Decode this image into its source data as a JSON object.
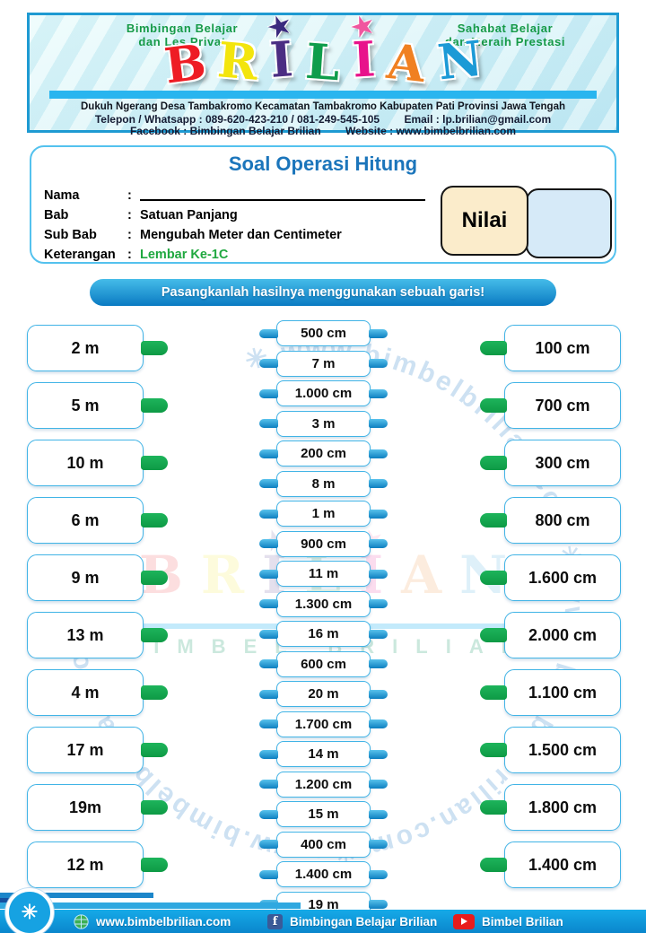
{
  "header": {
    "tagline_left": [
      "Bimbingan Belajar",
      "dan Les Privat"
    ],
    "tagline_right": [
      "Sahabat Belajar",
      "dan Meraih Prestasi"
    ],
    "logo_letters": [
      {
        "ch": "B",
        "color": "#ee1c24"
      },
      {
        "ch": "R",
        "color": "#f3e50d"
      },
      {
        "ch": "I",
        "color": "#4b2d83",
        "star": "#3b2a7e"
      },
      {
        "ch": "L",
        "color": "#0f9d4b"
      },
      {
        "ch": "I",
        "color": "#e8128b",
        "star": "#f0569f"
      },
      {
        "ch": "A",
        "color": "#f08021"
      },
      {
        "ch": "N",
        "color": "#1c9ad6"
      }
    ],
    "address": "Dukuh Ngerang Desa Tambakromo Kecamatan Tambakromo Kabupaten Pati Provinsi Jawa Tengah",
    "phone_line": "Telepon / Whatsapp : 089-620-423-210 / 081-249-545-105",
    "email_line": "Email : lp.brilian@gmail.com",
    "facebook_line": "Facebook : Bimbingan Belajar Brilian",
    "website_line": "Website : www.bimbelbrilian.com"
  },
  "info": {
    "title": "Soal Operasi Hitung",
    "colon": ":",
    "rows": [
      {
        "label": "Nama",
        "value": "",
        "type": "line"
      },
      {
        "label": "Bab",
        "value": "Satuan Panjang"
      },
      {
        "label": "Sub Bab",
        "value": "Mengubah Meter dan Centimeter"
      },
      {
        "label": "Keterangan",
        "value": "Lembar Ke-1C",
        "highlight": true
      }
    ],
    "nilai_label": "Nilai"
  },
  "instruction": {
    "text": "Pasangkanlah hasilnya menggunakan sebuah garis!"
  },
  "matching": {
    "left": [
      "2 m",
      "5 m",
      "10 m",
      "6 m",
      "9 m",
      "13 m",
      "4 m",
      "17 m",
      "19m",
      "12 m"
    ],
    "middle": [
      "500 cm",
      "7 m",
      "1.000 cm",
      "3 m",
      "200 cm",
      "8 m",
      "1 m",
      "900 cm",
      "11 m",
      "1.300 cm",
      "16 m",
      "600 cm",
      "20 m",
      "1.700 cm",
      "14 m",
      "1.200 cm",
      "15 m",
      "400 cm",
      "1.400 cm",
      "19 m"
    ],
    "right": [
      "100 cm",
      "700 cm",
      "300 cm",
      "800 cm",
      "1.600 cm",
      "2.000 cm",
      "1.100 cm",
      "1.500 cm",
      "1.800 cm",
      "1.400 cm"
    ]
  },
  "watermark": {
    "circle_text": "✳  www.bimbelbrilian.com      ✳  www.bimbelbrilian.com      ✳  www.bimbelbrilian.com",
    "bimbel_text": "BIMBEL BRILIAN"
  },
  "footer": {
    "badge_glyph": "✳",
    "facebook_glyph": "f",
    "website": "www.bimbelbrilian.com",
    "facebook": "Bimbingan Belajar Brilian",
    "youtube": "Bimbel Brilian"
  },
  "colors": {
    "accent_blue": "#1b75bb",
    "box_border_blue": "#41b4e6",
    "connector_green": "#11a74e",
    "connector_blue": "#1391cf",
    "footer_blue": "#0d9de0",
    "nilai_cream": "#fbeccb",
    "score_blue": "#d6eaf8",
    "tagline_green": "#169a47"
  }
}
